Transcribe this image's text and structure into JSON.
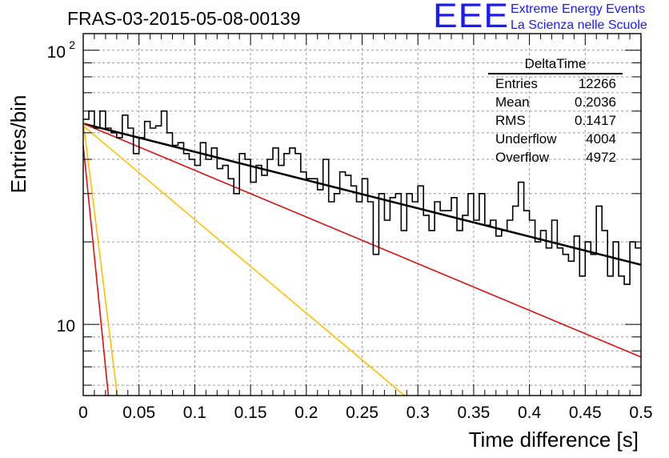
{
  "title": "FRAS-03-2015-05-08-00139",
  "logo": {
    "text": "EEE",
    "line1": "Extreme Energy Events",
    "line2": "La Scienza nelle Scuole",
    "color": "#1a1aff"
  },
  "stats": {
    "name": "DeltaTime",
    "rows": [
      {
        "label": "Entries",
        "value": "12266"
      },
      {
        "label": "Mean",
        "value": "0.2036"
      },
      {
        "label": "RMS",
        "value": "0.1417"
      },
      {
        "label": "Underflow",
        "value": "4004"
      },
      {
        "label": "Overflow",
        "value": "4972"
      }
    ]
  },
  "chart_data": {
    "type": "line",
    "xlabel": "Time difference [s]",
    "ylabel": "Entries/bin",
    "xlim": [
      0,
      0.5
    ],
    "ylim": [
      5.5,
      115
    ],
    "ylog": true,
    "grid": true,
    "xticks": [
      "0",
      "0.05",
      "0.1",
      "0.15",
      "0.2",
      "0.25",
      "0.3",
      "0.35",
      "0.4",
      "0.45",
      "0.5"
    ],
    "ytick_labels": [
      {
        "value": 10,
        "base": "10",
        "exp": ""
      },
      {
        "value": 100,
        "base": "10",
        "exp": "2"
      }
    ],
    "histogram": {
      "bin_width": 0.005,
      "values": [
        56,
        60,
        52,
        60,
        52,
        50,
        48,
        58,
        52,
        42,
        48,
        55,
        52,
        53,
        60,
        50,
        45,
        46,
        42,
        40,
        38,
        46,
        40,
        44,
        37,
        38,
        34,
        30,
        42,
        40,
        33,
        38,
        35,
        40,
        44,
        38,
        42,
        44,
        42,
        36,
        34,
        34,
        31,
        40,
        28,
        30,
        36,
        35,
        32,
        28,
        34,
        28,
        18,
        30,
        24,
        29,
        30,
        22,
        30,
        28,
        32,
        25,
        22,
        28,
        26,
        26,
        29,
        22,
        25,
        30,
        24,
        30,
        23,
        24,
        21,
        22,
        24,
        27,
        33,
        26,
        24,
        20,
        22,
        19,
        24,
        19,
        18,
        17,
        21,
        15,
        20,
        18,
        27,
        22,
        15,
        20,
        15,
        14,
        20,
        19
      ]
    },
    "fits": [
      {
        "name": "total",
        "color": "#000000",
        "width": 2.5,
        "points": [
          [
            0.0,
            54
          ],
          [
            0.5,
            16.5
          ]
        ]
      },
      {
        "name": "red-slow",
        "color": "#e01010",
        "width": 1.6,
        "points": [
          [
            0.0,
            54
          ],
          [
            0.5,
            7.6
          ]
        ]
      },
      {
        "name": "yellow",
        "color": "#ffc000",
        "width": 1.6,
        "points": [
          [
            0.0,
            53
          ],
          [
            0.288,
            5.5
          ]
        ]
      },
      {
        "name": "red-fast",
        "color": "#e01010",
        "width": 1.6,
        "points": [
          [
            0.0,
            45
          ],
          [
            0.0225,
            5.5
          ]
        ]
      },
      {
        "name": "yellow-fast",
        "color": "#ffc000",
        "width": 1.6,
        "points": [
          [
            0.0,
            55
          ],
          [
            0.0305,
            5.5
          ]
        ]
      }
    ]
  }
}
